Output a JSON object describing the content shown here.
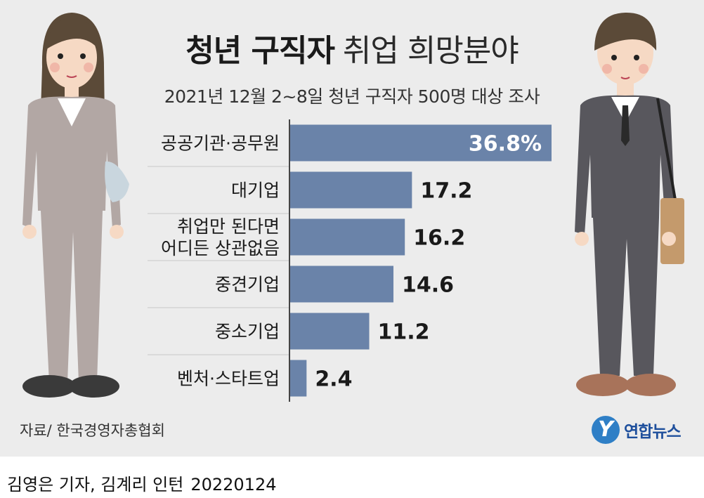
{
  "title": {
    "bold": "청년 구직자",
    "rest": "취업 희망분야"
  },
  "subtitle": "2021년 12월 2~8일 청년 구직자 500명 대상 조사",
  "source": "자료/ 한국경영자총협회",
  "logo": {
    "mark": "Y",
    "text": "연합뉴스"
  },
  "credit": {
    "text": "김영은 기자, 김계리 인턴",
    "date": "20220124"
  },
  "colors": {
    "bar": "#6a83a9",
    "panel": "#ececec",
    "divider": "#c8c8c8",
    "axis": "#444444"
  },
  "chart_data": {
    "type": "bar",
    "orientation": "horizontal",
    "categories": [
      [
        "공공기관·공무원"
      ],
      [
        "대기업"
      ],
      [
        "취업만 된다면",
        "어디든 상관없음"
      ],
      [
        "중견기업"
      ],
      [
        "중소기업"
      ],
      [
        "벤처·스타트업"
      ]
    ],
    "values": [
      36.8,
      17.2,
      16.2,
      14.6,
      11.2,
      2.4
    ],
    "value_labels": [
      "36.8%",
      "17.2",
      "16.2",
      "14.6",
      "11.2",
      "2.4"
    ],
    "unit": "%",
    "xlim": [
      0,
      36.8
    ],
    "grid": false
  }
}
